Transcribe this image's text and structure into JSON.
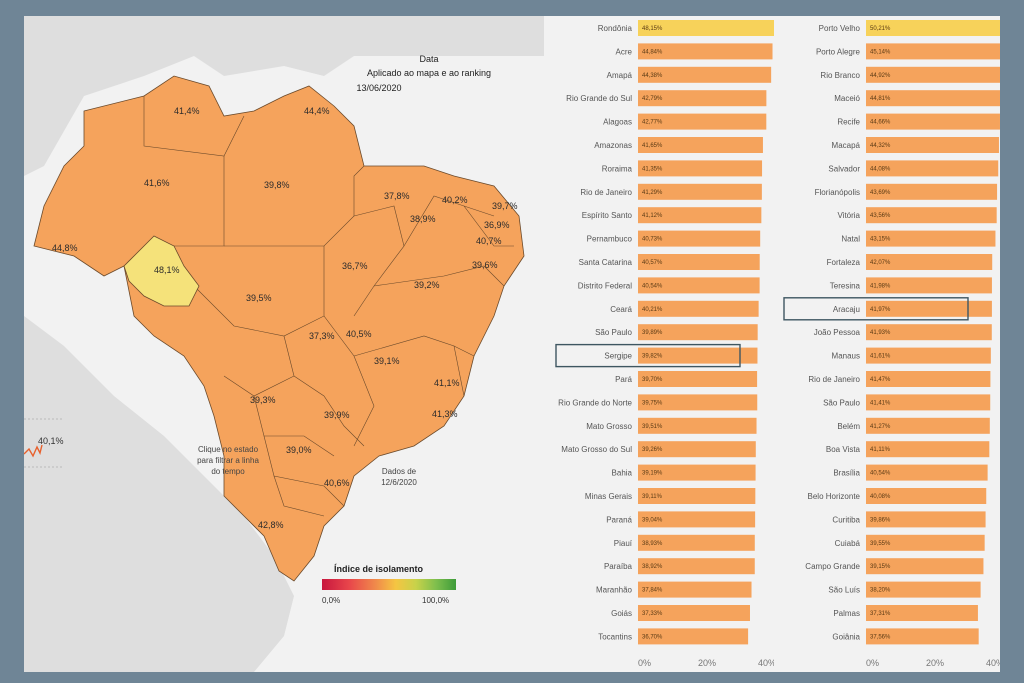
{
  "header": {
    "title": "Data",
    "subtitle": "Aplicado ao mapa e ao ranking",
    "date": "13/06/2020"
  },
  "notes": {
    "click": "Clique no estado para filtrar a linha do tempo",
    "dados": "Dados de 12/6/2020"
  },
  "timeline": {
    "value": "40,1%"
  },
  "legend": {
    "title": "Índice de isolamento",
    "min": "0,0%",
    "max": "100,0%"
  },
  "colors": {
    "bar": "#f5a35c",
    "highlight": "#f7d25a",
    "map_fill": "#f5a35c",
    "map_highlight": "#f5e27a",
    "selection_box": "#3e5661"
  },
  "chart_data": [
    {
      "type": "choropleth",
      "labels": [
        "41,4%",
        "44,4%",
        "41,6%",
        "39,8%",
        "37,8%",
        "40,2%",
        "39,7%",
        "38,9%",
        "36,9%",
        "40,7%",
        "44,8%",
        "48,1%",
        "36,7%",
        "39,6%",
        "39,2%",
        "39,5%",
        "37,3%",
        "40,5%",
        "39,1%",
        "41,1%",
        "39,3%",
        "39,9%",
        "41,3%",
        "39,0%",
        "40,6%",
        "42,8%"
      ]
    },
    {
      "type": "bar",
      "orientation": "horizontal",
      "xlim": [
        0,
        50
      ],
      "xticks": [
        "0%",
        "20%",
        "40%"
      ],
      "categories": [
        "Rondônia",
        "Acre",
        "Amapá",
        "Rio Grande do Sul",
        "Alagoas",
        "Amazonas",
        "Roraima",
        "Rio de Janeiro",
        "Espírito Santo",
        "Pernambuco",
        "Santa Catarina",
        "Distrito Federal",
        "Ceará",
        "São Paulo",
        "Sergipe",
        "Pará",
        "Rio Grande do Norte",
        "Mato Grosso",
        "Mato Grosso do Sul",
        "Bahia",
        "Minas Gerais",
        "Paraná",
        "Piauí",
        "Paraíba",
        "Maranhão",
        "Goiás",
        "Tocantins"
      ],
      "value_labels": [
        "48,15%",
        "44,84%",
        "44,38%",
        "42,79%",
        "42,77%",
        "41,65%",
        "41,35%",
        "41,29%",
        "41,12%",
        "40,73%",
        "40,57%",
        "40,54%",
        "40,21%",
        "39,89%",
        "39,82%",
        "39,70%",
        "39,75%",
        "39,51%",
        "39,26%",
        "39,19%",
        "39,11%",
        "39,04%",
        "38,93%",
        "38,92%",
        "37,84%",
        "37,33%",
        "36,70%"
      ],
      "values": [
        48.15,
        44.84,
        44.38,
        42.79,
        42.77,
        41.65,
        41.35,
        41.29,
        41.12,
        40.73,
        40.57,
        40.54,
        40.21,
        39.89,
        39.82,
        39.7,
        39.75,
        39.51,
        39.26,
        39.19,
        39.11,
        39.04,
        38.93,
        38.92,
        37.84,
        37.33,
        36.7
      ],
      "highlighted": "Rondônia",
      "boxed": "Sergipe"
    },
    {
      "type": "bar",
      "orientation": "horizontal",
      "xlim": [
        0,
        50
      ],
      "xticks": [
        "0%",
        "20%",
        "40%"
      ],
      "categories": [
        "Porto Velho",
        "Porto Alegre",
        "Rio Branco",
        "Maceió",
        "Recife",
        "Macapá",
        "Salvador",
        "Florianópolis",
        "Vitória",
        "Natal",
        "Fortaleza",
        "Teresina",
        "Aracaju",
        "João Pessoa",
        "Manaus",
        "Rio de Janeiro",
        "São Paulo",
        "Belém",
        "Boa Vista",
        "Brasília",
        "Belo Horizonte",
        "Curitiba",
        "Cuiabá",
        "Campo Grande",
        "São Luís",
        "Palmas",
        "Goiânia"
      ],
      "value_labels": [
        "50,21%",
        "45,14%",
        "44,92%",
        "44,81%",
        "44,66%",
        "44,32%",
        "44,08%",
        "43,69%",
        "43,56%",
        "43,15%",
        "42,07%",
        "41,98%",
        "41,97%",
        "41,93%",
        "41,61%",
        "41,47%",
        "41,41%",
        "41,27%",
        "41,11%",
        "40,54%",
        "40,08%",
        "39,86%",
        "39,55%",
        "39,15%",
        "38,20%",
        "37,31%",
        "37,56%"
      ],
      "values": [
        50.21,
        45.14,
        44.92,
        44.81,
        44.66,
        44.32,
        44.08,
        43.69,
        43.56,
        43.15,
        42.07,
        41.98,
        41.97,
        41.93,
        41.61,
        41.47,
        41.41,
        41.27,
        41.11,
        40.54,
        40.08,
        39.86,
        39.55,
        39.15,
        38.2,
        37.31,
        37.56
      ],
      "highlighted": "Porto Velho",
      "boxed": "Aracaju"
    }
  ]
}
